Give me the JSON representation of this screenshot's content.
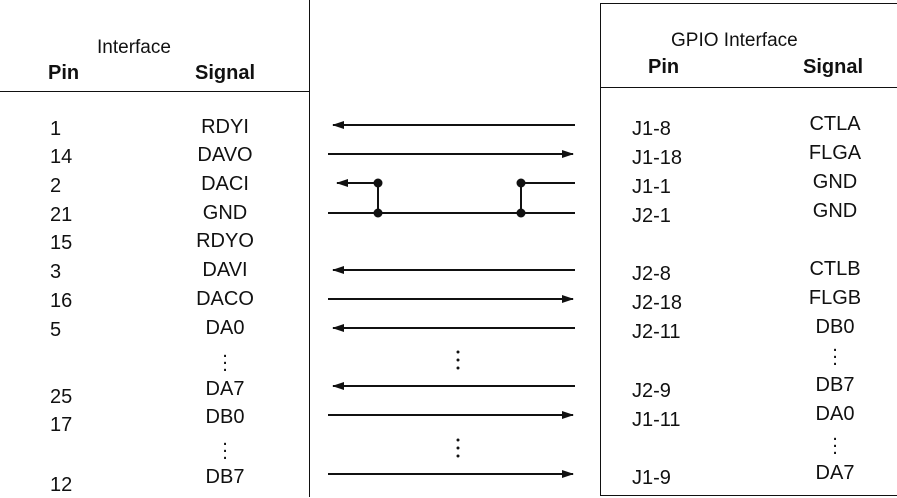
{
  "left_table": {
    "title": "Interface",
    "pin_header": "Pin",
    "signal_header": "Signal",
    "rows": [
      {
        "pin": "1",
        "signal": "RDYI"
      },
      {
        "pin": "14",
        "signal": "DAVO"
      },
      {
        "pin": "2",
        "signal": "DACI"
      },
      {
        "pin": "21",
        "signal": "GND"
      },
      {
        "pin": "15",
        "signal": "RDYO"
      },
      {
        "pin": "3",
        "signal": "DAVI"
      },
      {
        "pin": "16",
        "signal": "DACO"
      },
      {
        "pin": "5",
        "signal": "DA0"
      },
      {
        "pin": "25",
        "signal": "DA7"
      },
      {
        "pin": "17",
        "signal": "DB0"
      },
      {
        "pin": "12",
        "signal": "DB7"
      }
    ]
  },
  "right_table": {
    "title": "GPIO Interface",
    "pin_header": "Pin",
    "signal_header": "Signal",
    "rows": [
      {
        "pin": "J1-8",
        "signal": "CTLA"
      },
      {
        "pin": "J1-18",
        "signal": "FLGA"
      },
      {
        "pin": "J1-1",
        "signal": "GND"
      },
      {
        "pin": "J2-1",
        "signal": "GND"
      },
      {
        "pin": "J2-8",
        "signal": "CTLB"
      },
      {
        "pin": "J2-18",
        "signal": "FLGB"
      },
      {
        "pin": "J2-11",
        "signal": "DB0"
      },
      {
        "pin": "J2-9",
        "signal": "DB7"
      },
      {
        "pin": "J1-11",
        "signal": "DA0"
      },
      {
        "pin": "J1-9",
        "signal": "DA7"
      }
    ]
  },
  "colors": {
    "ink": "#111111",
    "background": "#ffffff"
  }
}
